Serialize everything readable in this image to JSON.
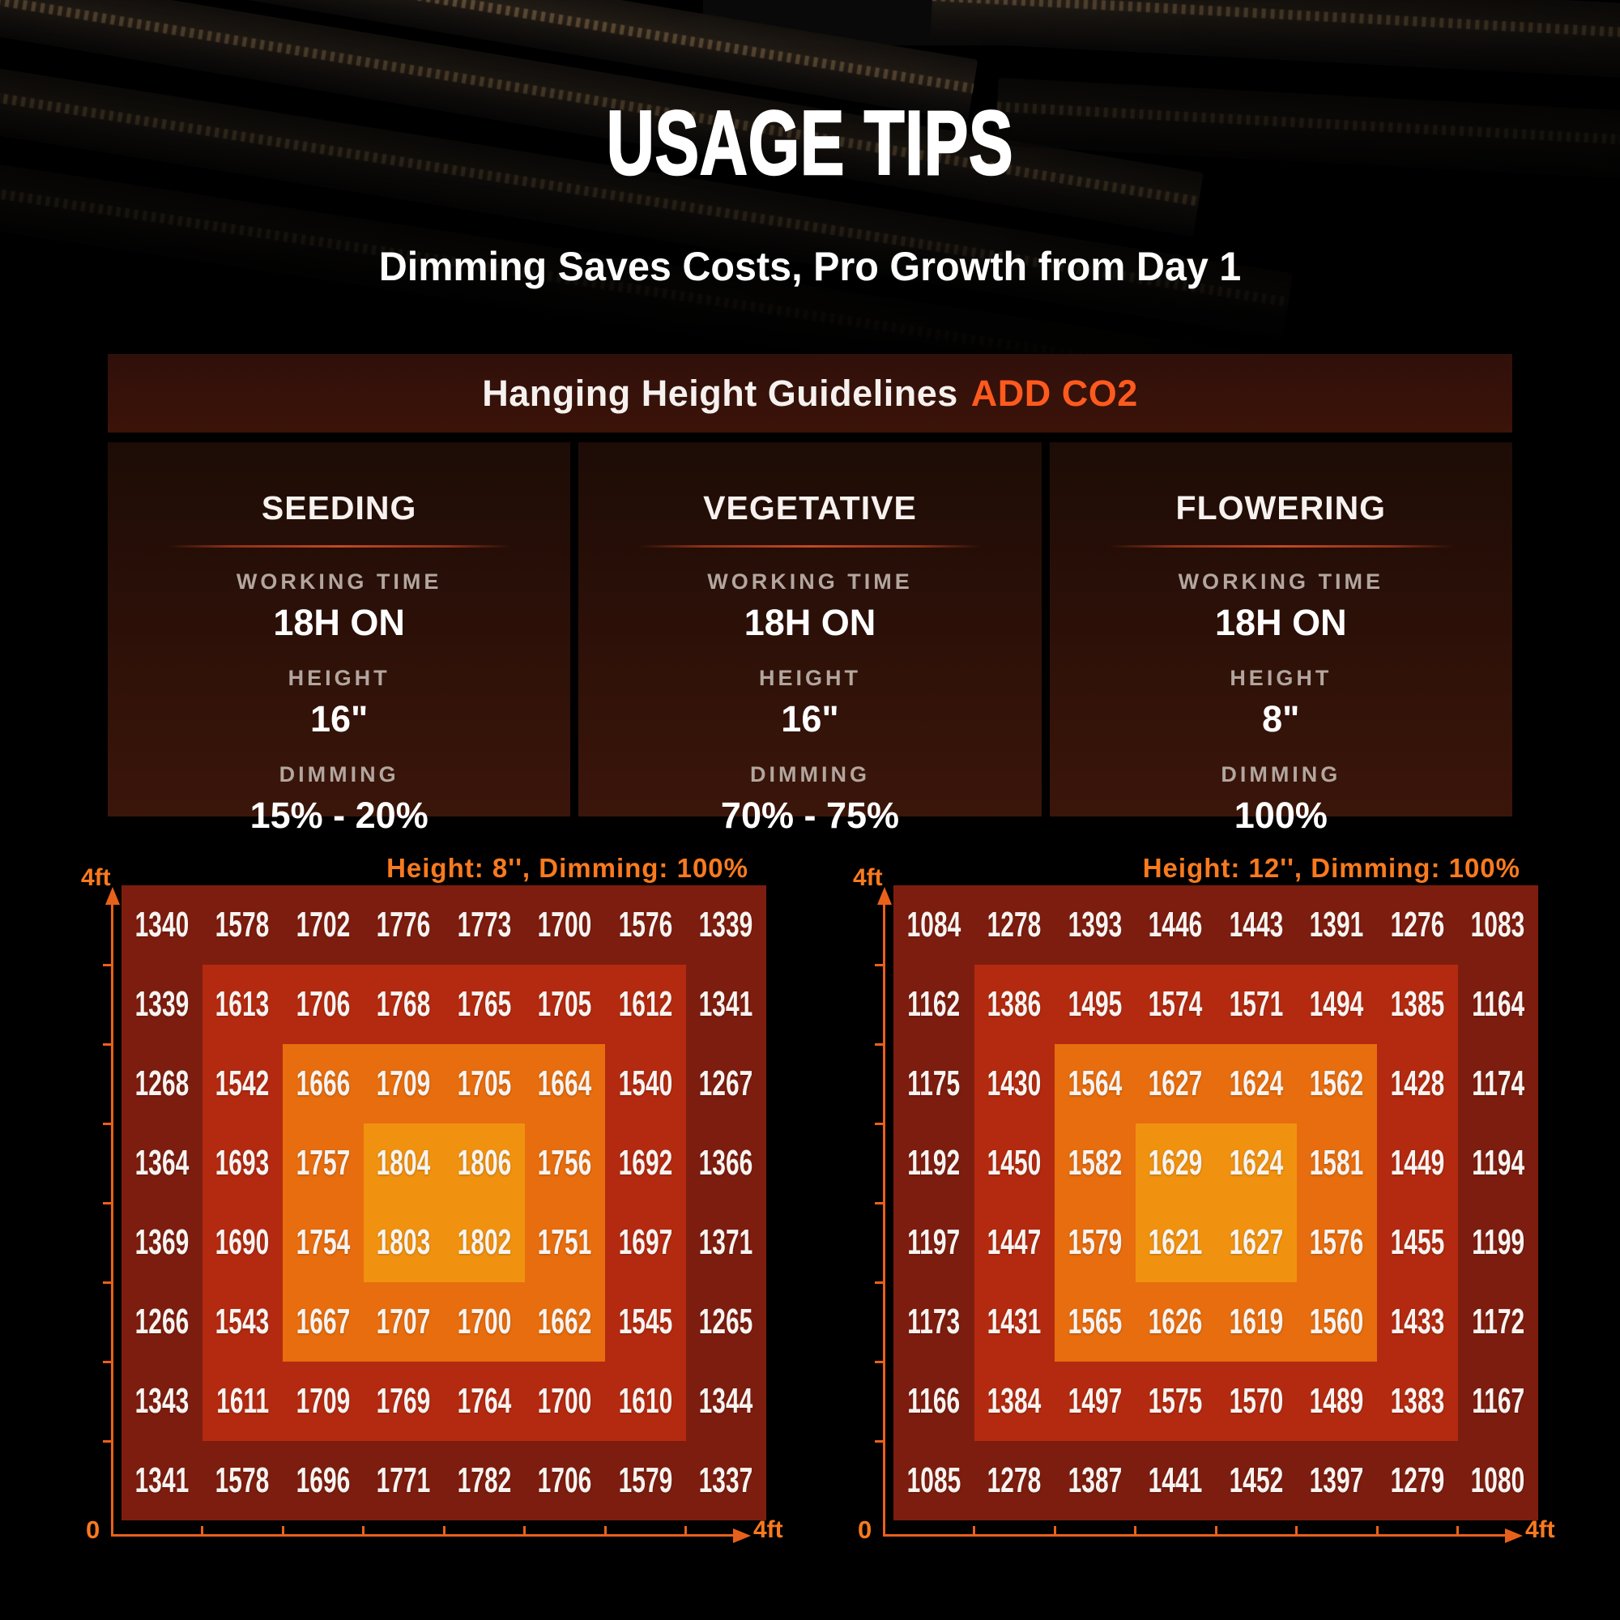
{
  "page": {
    "title": "USAGE TIPS",
    "subtitle": "Dimming Saves Costs, Pro Growth from Day 1"
  },
  "guidelines": {
    "header_text": "Hanging Height Guidelines",
    "header_highlight": "ADD CO2",
    "stages": [
      {
        "name": "SEEDING",
        "working_time_label": "WORKING TIME",
        "working_time": "18H ON",
        "height_label": "HEIGHT",
        "height": "16\"",
        "dimming_label": "DIMMING",
        "dimming": "15% - 20%"
      },
      {
        "name": "VEGETATIVE",
        "working_time_label": "WORKING TIME",
        "working_time": "18H ON",
        "height_label": "HEIGHT",
        "height": "16\"",
        "dimming_label": "DIMMING",
        "dimming": "70% - 75%"
      },
      {
        "name": "FLOWERING",
        "working_time_label": "WORKING TIME",
        "working_time": "18H ON",
        "height_label": "HEIGHT",
        "height": "8\"",
        "dimming_label": "DIMMING",
        "dimming": "100%"
      }
    ]
  },
  "chart_data": [
    {
      "type": "heatmap",
      "title": "Height: 8'', Dimming: 100%",
      "rows": 8,
      "cols": 8,
      "x_axis": {
        "start_label": "0",
        "end_label": "4ft",
        "interior_ticks": 7
      },
      "y_axis": {
        "end_label": "4ft",
        "interior_ticks": 7
      },
      "values": [
        [
          1340,
          1578,
          1702,
          1776,
          1773,
          1700,
          1576,
          1339
        ],
        [
          1339,
          1613,
          1706,
          1768,
          1765,
          1705,
          1612,
          1341
        ],
        [
          1268,
          1542,
          1666,
          1709,
          1705,
          1664,
          1540,
          1267
        ],
        [
          1364,
          1693,
          1757,
          1804,
          1806,
          1756,
          1692,
          1366
        ],
        [
          1369,
          1690,
          1754,
          1803,
          1802,
          1751,
          1697,
          1371
        ],
        [
          1266,
          1543,
          1667,
          1707,
          1700,
          1662,
          1545,
          1265
        ],
        [
          1343,
          1611,
          1709,
          1769,
          1764,
          1700,
          1610,
          1344
        ],
        [
          1341,
          1578,
          1696,
          1771,
          1782,
          1706,
          1579,
          1337
        ]
      ],
      "palette_low_to_high": [
        "#7d1d0f",
        "#b32a10",
        "#e76d0e",
        "#f0920f"
      ]
    },
    {
      "type": "heatmap",
      "title": "Height: 12'', Dimming: 100%",
      "rows": 8,
      "cols": 8,
      "x_axis": {
        "start_label": "0",
        "end_label": "4ft",
        "interior_ticks": 7
      },
      "y_axis": {
        "end_label": "4ft",
        "interior_ticks": 7
      },
      "values": [
        [
          1084,
          1278,
          1393,
          1446,
          1443,
          1391,
          1276,
          1083
        ],
        [
          1162,
          1386,
          1495,
          1574,
          1571,
          1494,
          1385,
          1164
        ],
        [
          1175,
          1430,
          1564,
          1627,
          1624,
          1562,
          1428,
          1174
        ],
        [
          1192,
          1450,
          1582,
          1629,
          1624,
          1581,
          1449,
          1194
        ],
        [
          1197,
          1447,
          1579,
          1621,
          1627,
          1576,
          1455,
          1199
        ],
        [
          1173,
          1431,
          1565,
          1626,
          1619,
          1560,
          1433,
          1172
        ],
        [
          1166,
          1384,
          1497,
          1575,
          1570,
          1489,
          1383,
          1167
        ],
        [
          1085,
          1278,
          1387,
          1441,
          1452,
          1397,
          1279,
          1080
        ]
      ],
      "palette_low_to_high": [
        "#7d1d0f",
        "#b32a10",
        "#e76d0e",
        "#f0920f"
      ]
    }
  ],
  "colors": {
    "background": "#000000",
    "accent_orange": "#f97a1e",
    "highlight_orange": "#ff5a1e",
    "axis_orange": "#e8611a",
    "label_gray": "#b2a69e",
    "panel_brown": "#3b1309"
  }
}
